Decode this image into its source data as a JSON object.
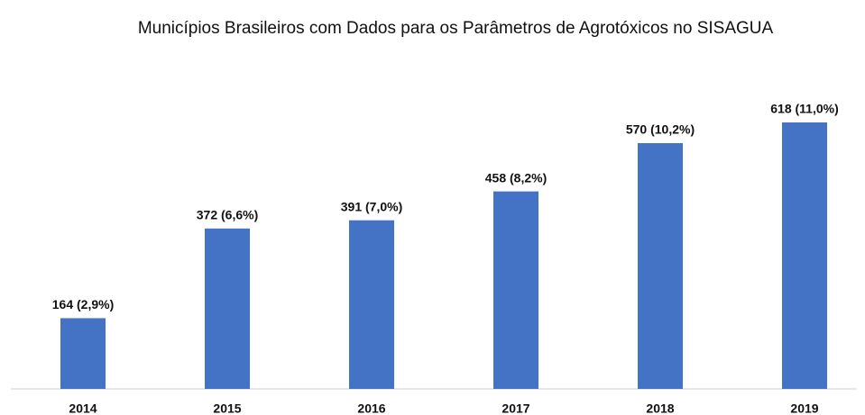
{
  "chart_data": {
    "type": "bar",
    "title": "Municípios Brasileiros com Dados para os Parâmetros de Agrotóxicos no SISAGUA",
    "categories": [
      "2014",
      "2015",
      "2016",
      "2017",
      "2018",
      "2019"
    ],
    "values": [
      164,
      372,
      391,
      458,
      570,
      618
    ],
    "value_labels": [
      "164 (2,9%)",
      "372 (6,6%)",
      "391 (7,0%)",
      "458 (8,2%)",
      "570 (10,2%)",
      "618 (11,0%)"
    ],
    "color": "#4472c4"
  }
}
